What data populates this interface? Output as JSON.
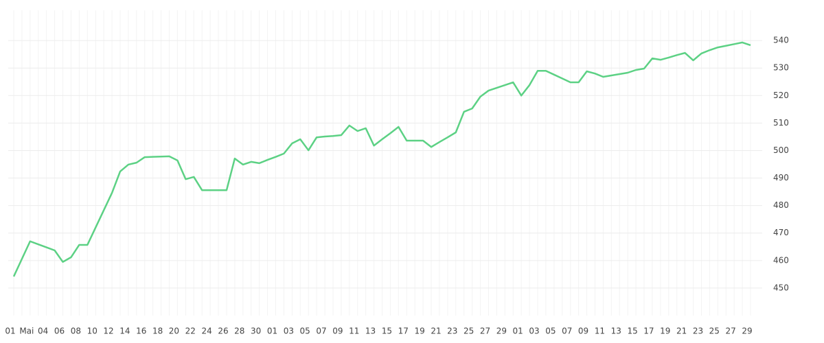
{
  "chart_data": {
    "type": "line",
    "categories": [
      "01",
      null,
      "Mai",
      null,
      "04",
      null,
      "06",
      null,
      "08",
      null,
      "10",
      null,
      "12",
      null,
      "14",
      null,
      "16",
      null,
      "18",
      null,
      "20",
      null,
      "22",
      null,
      "24",
      null,
      "26",
      null,
      "28",
      null,
      "30",
      null,
      "01",
      null,
      "03",
      null,
      "05",
      null,
      "07",
      null,
      "09",
      null,
      "11",
      null,
      "13",
      null,
      "15",
      null,
      "17",
      null,
      "19",
      null,
      "21",
      null,
      "23",
      null,
      "25",
      null,
      "27",
      null,
      "29",
      null,
      "01",
      null,
      "03",
      null,
      "05",
      null,
      "07",
      null,
      "09",
      null,
      "11",
      null,
      "13",
      null,
      "15",
      null,
      "17",
      null,
      "19",
      null,
      "21",
      null,
      "23",
      null,
      "25",
      null,
      "27",
      null,
      "29"
    ],
    "series": [
      {
        "color": "#5cd184",
        "values": [
          454.2,
          460.6,
          467.0,
          465.9,
          464.8,
          463.7,
          459.5,
          461.2,
          465.7,
          465.7,
          472.0,
          478.3,
          484.6,
          492.4,
          494.9,
          495.6,
          497.6,
          497.7,
          497.8,
          497.9,
          496.4,
          489.6,
          490.4,
          485.6,
          485.6,
          485.6,
          485.6,
          497.1,
          494.9,
          495.9,
          495.4,
          496.6,
          497.7,
          498.9,
          502.6,
          504.1,
          500.1,
          504.8,
          505.1,
          505.3,
          505.6,
          509.1,
          507.1,
          508.1,
          501.8,
          504.1,
          506.3,
          508.6,
          503.6,
          503.6,
          503.6,
          501.3,
          503.1,
          504.8,
          506.6,
          514.1,
          515.3,
          519.6,
          521.8,
          522.8,
          523.8,
          524.8,
          520.0,
          523.8,
          529.0,
          529.0,
          527.6,
          526.2,
          524.8,
          524.8,
          528.8,
          528.0,
          526.8,
          527.3,
          527.8,
          528.3,
          529.3,
          529.8,
          533.5,
          533.0,
          533.8,
          534.7,
          535.5,
          532.8,
          535.3,
          536.5,
          537.5,
          538.1,
          538.7,
          539.3,
          538.3
        ]
      }
    ],
    "ylim": [
      440,
      551
    ],
    "yticks": [
      450,
      460,
      470,
      480,
      490,
      500,
      510,
      520,
      530,
      540
    ],
    "grid": true,
    "y_axis_side": "right"
  }
}
